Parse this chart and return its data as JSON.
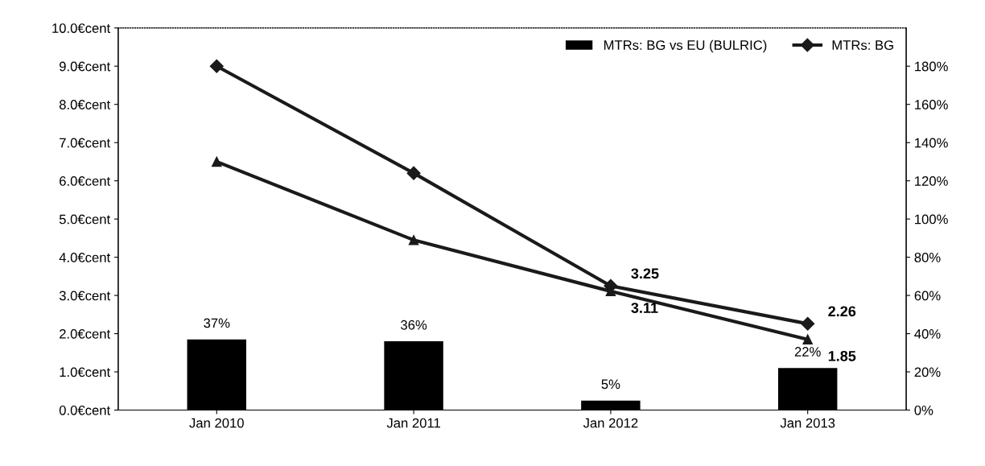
{
  "chart_data": {
    "type": "line",
    "categories": [
      "Jan 2010",
      "Jan 2011",
      "Jan 2012",
      "Jan 2013"
    ],
    "series": [
      {
        "name": "MTRs: BG vs EU (BULRIC)",
        "type": "bar",
        "axis": "y2",
        "color": "#000000",
        "values": [
          37,
          36,
          5,
          22
        ],
        "value_labels": [
          "37%",
          "36%",
          "5%",
          "22%"
        ]
      },
      {
        "name": "MTRs: BG",
        "color": "#1a1a1a",
        "marker": "diamond",
        "values": [
          9.0,
          6.2,
          3.25,
          2.26
        ],
        "value_labels": [
          null,
          null,
          "3.25",
          "2.26"
        ]
      },
      {
        "color": "#1a1a1a",
        "marker": "triangle",
        "values": [
          6.5,
          4.45,
          3.11,
          1.85
        ],
        "value_labels": [
          null,
          null,
          "3.11",
          "1.85"
        ]
      }
    ],
    "ylim": [
      0,
      10
    ],
    "yticks": [
      {
        "value": 0,
        "label": "0.0€cent"
      },
      {
        "value": 1,
        "label": "1.0€cent"
      },
      {
        "value": 2,
        "label": "2.0€cent"
      },
      {
        "value": 3,
        "label": "3.0€cent"
      },
      {
        "value": 4,
        "label": "4.0€cent"
      },
      {
        "value": 5,
        "label": "5.0€cent"
      },
      {
        "value": 6,
        "label": "6.0€cent"
      },
      {
        "value": 7,
        "label": "7.0€cent"
      },
      {
        "value": 8,
        "label": "8.0€cent"
      },
      {
        "value": 9,
        "label": "9.0€cent"
      },
      {
        "value": 10,
        "label": "10.0€cent"
      }
    ],
    "y2lim": [
      0,
      200
    ],
    "y2ticks": [
      {
        "value": 0,
        "label": "0%"
      },
      {
        "value": 20,
        "label": "20%"
      },
      {
        "value": 40,
        "label": "40%"
      },
      {
        "value": 60,
        "label": "60%"
      },
      {
        "value": 80,
        "label": "80%"
      },
      {
        "value": 100,
        "label": "100%"
      },
      {
        "value": 120,
        "label": "120%"
      },
      {
        "value": 140,
        "label": "140%"
      },
      {
        "value": 160,
        "label": "160%"
      },
      {
        "value": 180,
        "label": "180%"
      }
    ],
    "legend": "top right",
    "grid": false
  }
}
